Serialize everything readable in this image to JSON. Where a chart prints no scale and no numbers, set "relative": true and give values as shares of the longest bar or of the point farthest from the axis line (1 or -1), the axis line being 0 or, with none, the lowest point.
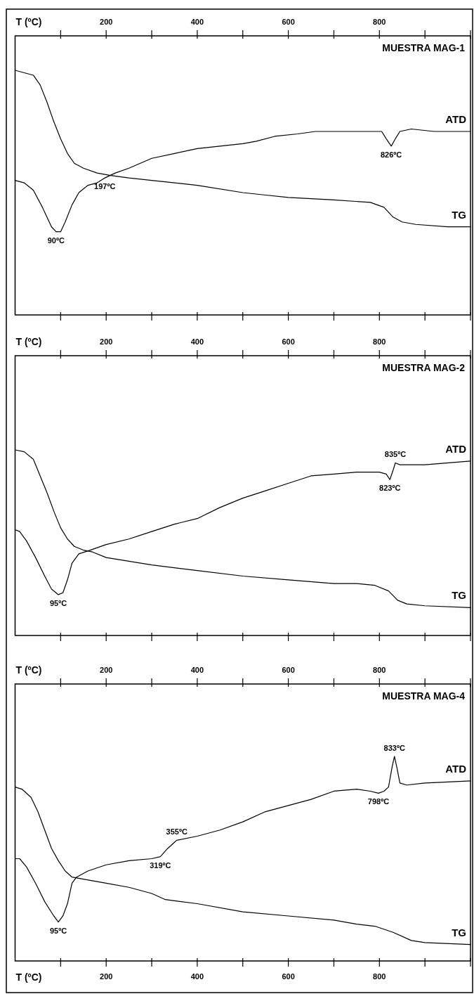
{
  "chart_data": [
    {
      "type": "line",
      "title": "MUESTRA MAG-1",
      "relative": true,
      "xlabel": "T (ºC)",
      "xlim": [
        0,
        1000
      ],
      "xticks": [
        {
          "value": 100,
          "label": null
        },
        200,
        {
          "value": 300,
          "label": null
        },
        400,
        {
          "value": 500,
          "label": null
        },
        600,
        {
          "value": 700,
          "label": null
        },
        800,
        {
          "value": 900,
          "label": null
        },
        {
          "value": 1000,
          "label": null
        }
      ],
      "series": [
        {
          "name": "ATD",
          "color": "#000000",
          "x": [
            0,
            20,
            40,
            60,
            80,
            90,
            100,
            110,
            125,
            140,
            160,
            180,
            197,
            220,
            250,
            300,
            350,
            400,
            450,
            500,
            530,
            570,
            620,
            660,
            700,
            750,
            790,
            805,
            815,
            826,
            835,
            845,
            870,
            920,
            1000
          ],
          "values": [
            0.55,
            0.54,
            0.51,
            0.44,
            0.36,
            0.34,
            0.34,
            0.38,
            0.45,
            0.5,
            0.53,
            0.54,
            0.56,
            0.58,
            0.6,
            0.64,
            0.66,
            0.68,
            0.69,
            0.7,
            0.71,
            0.73,
            0.74,
            0.75,
            0.75,
            0.75,
            0.75,
            0.75,
            0.72,
            0.69,
            0.72,
            0.75,
            0.76,
            0.75,
            0.75
          ]
        },
        {
          "name": "TG",
          "color": "#000000",
          "x": [
            0,
            20,
            40,
            55,
            70,
            85,
            100,
            115,
            130,
            150,
            180,
            210,
            250,
            300,
            400,
            500,
            550,
            600,
            700,
            780,
            810,
            830,
            850,
            880,
            950,
            1000
          ],
          "values": [
            1,
            0.99,
            0.98,
            0.94,
            0.87,
            0.79,
            0.72,
            0.66,
            0.62,
            0.6,
            0.58,
            0.57,
            0.56,
            0.55,
            0.53,
            0.5,
            0.49,
            0.48,
            0.47,
            0.46,
            0.44,
            0.4,
            0.38,
            0.37,
            0.36,
            0.36
          ]
        }
      ],
      "annotations": [
        {
          "text": "90ºC",
          "x": 90,
          "y": 0.34
        },
        {
          "text": "197ºC",
          "x": 197,
          "y": 0.56
        },
        {
          "text": "826ºC",
          "x": 826,
          "y": 0.69
        }
      ]
    },
    {
      "type": "line",
      "title": "MUESTRA MAG-2",
      "relative": true,
      "xlabel": "T (ºC)",
      "xlim": [
        0,
        1000
      ],
      "xticks": [
        {
          "value": 100,
          "label": null
        },
        200,
        {
          "value": 300,
          "label": null
        },
        400,
        {
          "value": 500,
          "label": null
        },
        600,
        {
          "value": 700,
          "label": null
        },
        800,
        {
          "value": 900,
          "label": null
        },
        {
          "value": 1000,
          "label": null
        }
      ],
      "series": [
        {
          "name": "ATD",
          "color": "#000000",
          "x": [
            0,
            10,
            25,
            45,
            65,
            80,
            95,
            105,
            115,
            125,
            140,
            165,
            200,
            250,
            300,
            350,
            400,
            450,
            500,
            550,
            600,
            650,
            700,
            750,
            800,
            815,
            823,
            830,
            835,
            845,
            900,
            1000
          ],
          "values": [
            0.57,
            0.56,
            0.51,
            0.42,
            0.32,
            0.25,
            0.22,
            0.23,
            0.3,
            0.39,
            0.44,
            0.46,
            0.49,
            0.52,
            0.56,
            0.6,
            0.63,
            0.69,
            0.74,
            0.78,
            0.82,
            0.86,
            0.87,
            0.88,
            0.88,
            0.87,
            0.84,
            0.89,
            0.93,
            0.92,
            0.92,
            0.94
          ]
        },
        {
          "name": "TG",
          "color": "#000000",
          "x": [
            0,
            20,
            40,
            55,
            70,
            85,
            100,
            115,
            130,
            150,
            170,
            200,
            250,
            300,
            400,
            500,
            600,
            700,
            750,
            790,
            820,
            840,
            860,
            900,
            1000
          ],
          "values": [
            1,
            0.99,
            0.95,
            0.86,
            0.77,
            0.67,
            0.58,
            0.52,
            0.48,
            0.46,
            0.45,
            0.42,
            0.4,
            0.38,
            0.35,
            0.32,
            0.3,
            0.28,
            0.28,
            0.27,
            0.24,
            0.19,
            0.17,
            0.16,
            0.15
          ]
        }
      ],
      "annotations": [
        {
          "text": "95ºC",
          "x": 95,
          "y": 0.22
        },
        {
          "text": "823ºC",
          "x": 823,
          "y": 0.84
        },
        {
          "text": "835ºC",
          "x": 835,
          "y": 0.93
        }
      ]
    },
    {
      "type": "line",
      "title": "MUESTRA MAG-4",
      "relative": true,
      "x2label": "T (ºC)",
      "x2lim": [
        0,
        1000
      ],
      "x2ticks": [
        {
          "value": 100,
          "label": null
        },
        200,
        {
          "value": 300,
          "label": null
        },
        400,
        {
          "value": 500,
          "label": null
        },
        600,
        {
          "value": 700,
          "label": null
        },
        800,
        {
          "value": 900,
          "label": null
        },
        {
          "value": 1000,
          "label": null
        }
      ],
      "xlabel": "T (ºC)",
      "xlim": [
        0,
        1000
      ],
      "xticks": [
        {
          "value": 100,
          "label": null
        },
        200,
        {
          "value": 300,
          "label": null
        },
        400,
        {
          "value": 500,
          "label": null
        },
        600,
        {
          "value": 700,
          "label": null
        },
        800,
        {
          "value": 900,
          "label": null
        },
        {
          "value": 1000,
          "label": null
        }
      ],
      "series": [
        {
          "name": "ATD",
          "color": "#000000",
          "x": [
            0,
            10,
            25,
            45,
            65,
            85,
            95,
            105,
            115,
            125,
            135,
            160,
            200,
            250,
            300,
            319,
            335,
            355,
            400,
            450,
            500,
            550,
            600,
            650,
            700,
            750,
            780,
            798,
            810,
            820,
            828,
            833,
            838,
            845,
            860,
            900,
            1000
          ],
          "values": [
            0.5,
            0.5,
            0.46,
            0.38,
            0.29,
            0.22,
            0.19,
            0.22,
            0.28,
            0.38,
            0.41,
            0.44,
            0.47,
            0.49,
            0.5,
            0.51,
            0.55,
            0.59,
            0.61,
            0.64,
            0.68,
            0.73,
            0.76,
            0.79,
            0.83,
            0.84,
            0.83,
            0.82,
            0.83,
            0.85,
            0.95,
            1,
            0.95,
            0.87,
            0.86,
            0.87,
            0.88
          ]
        },
        {
          "name": "TG",
          "color": "#000000",
          "x": [
            0,
            15,
            35,
            50,
            65,
            80,
            95,
            110,
            125,
            150,
            200,
            250,
            300,
            330,
            400,
            500,
            600,
            700,
            750,
            790,
            830,
            870,
            900,
            1000
          ],
          "values": [
            0.85,
            0.84,
            0.8,
            0.73,
            0.64,
            0.55,
            0.49,
            0.44,
            0.41,
            0.4,
            0.38,
            0.36,
            0.33,
            0.3,
            0.28,
            0.24,
            0.22,
            0.2,
            0.18,
            0.17,
            0.14,
            0.1,
            0.09,
            0.08
          ]
        }
      ],
      "annotations": [
        {
          "text": "95ºC",
          "x": 95,
          "y": 0.19
        },
        {
          "text": "319ºC",
          "x": 319,
          "y": 0.51
        },
        {
          "text": "355ºC",
          "x": 355,
          "y": 0.59
        },
        {
          "text": "798ºC",
          "x": 798,
          "y": 0.82
        },
        {
          "text": "833ºC",
          "x": 833,
          "y": 1
        }
      ]
    }
  ]
}
